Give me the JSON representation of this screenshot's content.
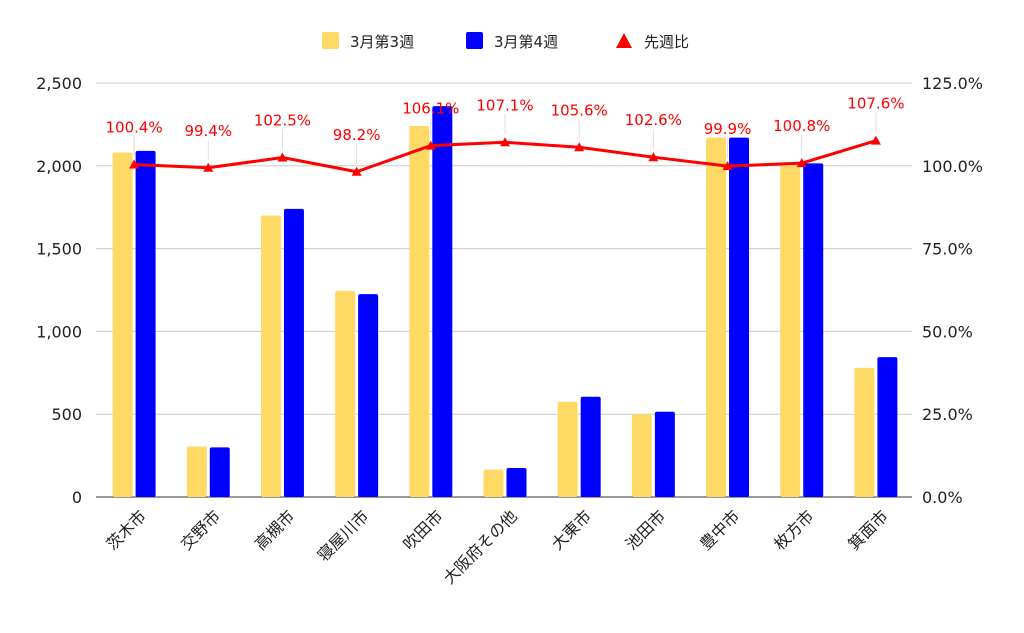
{
  "chart_data": {
    "type": "bar",
    "categories": [
      "茨木市",
      "交野市",
      "高槻市",
      "寝屋川市",
      "吹田市",
      "大阪府その他",
      "大東市",
      "池田市",
      "豊中市",
      "枚方市",
      "箕面市"
    ],
    "series": [
      {
        "name": "3月第3週",
        "type": "bar",
        "axis": "left",
        "color": "#FFD966",
        "values": [
          2080,
          305,
          1700,
          1245,
          2240,
          165,
          575,
          500,
          2170,
          2010,
          780
        ]
      },
      {
        "name": "3月第4週",
        "type": "bar",
        "axis": "left",
        "color": "#0000FF",
        "values": [
          2090,
          300,
          1740,
          1225,
          2360,
          175,
          605,
          515,
          2170,
          2015,
          845
        ]
      },
      {
        "name": "先週比",
        "type": "line",
        "axis": "right",
        "color": "#FF0000",
        "values": [
          100.4,
          99.4,
          102.5,
          98.2,
          106.1,
          107.1,
          105.6,
          102.6,
          99.9,
          100.8,
          107.6
        ],
        "labels": [
          "100.4%",
          "99.4%",
          "102.5%",
          "98.2%",
          "106.1%",
          "107.1%",
          "105.6%",
          "102.6%",
          "99.9%",
          "100.8%",
          "107.6%"
        ]
      }
    ],
    "left_axis": {
      "ylim": [
        0,
        2500
      ],
      "ticks": [
        0,
        500,
        1000,
        1500,
        2000,
        2500
      ],
      "tick_labels": [
        "0",
        "500",
        "1,000",
        "1,500",
        "2,000",
        "2,500"
      ]
    },
    "right_axis": {
      "ylim": [
        0,
        125
      ],
      "ticks": [
        0,
        25,
        50,
        75,
        100,
        125
      ],
      "tick_labels": [
        "0.0%",
        "25.0%",
        "50.0%",
        "75.0%",
        "100.0%",
        "125.0%"
      ]
    },
    "legend_position": "top",
    "grid": true,
    "title": "",
    "xlabel": "",
    "ylabel": ""
  }
}
